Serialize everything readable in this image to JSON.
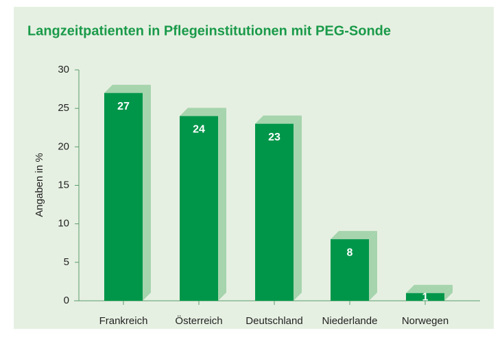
{
  "chart_data": {
    "type": "bar",
    "title": "Langzeitpatienten in Pflegeinstitutionen mit PEG-Sonde",
    "y_label": "Angaben in %",
    "categories": [
      "Frankreich",
      "Österreich",
      "Deutschland",
      "Niederlande",
      "Norwegen"
    ],
    "values": [
      27,
      24,
      23,
      8,
      1
    ],
    "color": "#00964a",
    "ylim": [
      0,
      30
    ],
    "yticks": [
      0,
      5,
      10,
      15,
      20,
      25,
      30
    ],
    "grid": false
  }
}
